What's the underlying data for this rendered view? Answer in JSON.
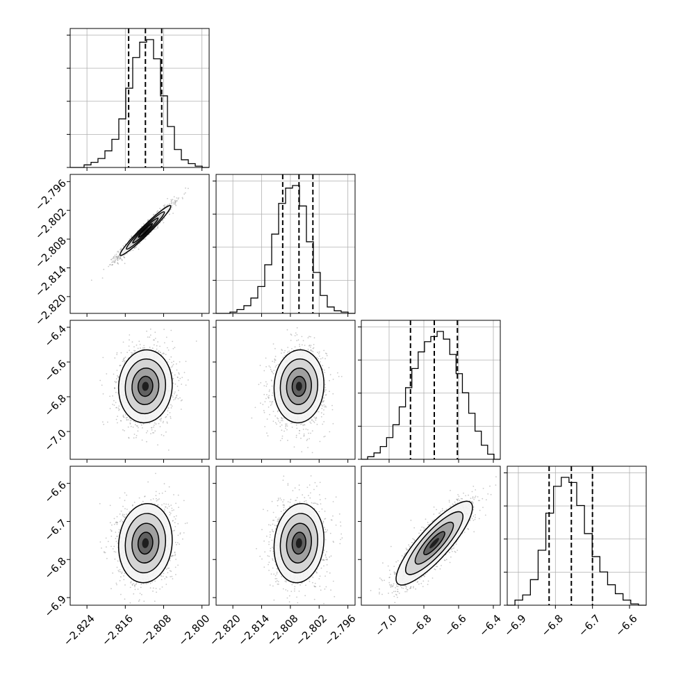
{
  "chart_data": {
    "type": "corner",
    "params": [
      {
        "range": [
          -2.8275,
          -2.7985
        ],
        "ticks": [
          "−2.824",
          "−2.816",
          "−2.808",
          "−2.800"
        ],
        "tick_values": [
          -2.824,
          -2.816,
          -2.808,
          -2.8
        ],
        "quantiles": [
          -2.8153,
          -2.8118,
          -2.8084
        ],
        "hist": [
          0.0,
          0.0,
          0.02,
          0.04,
          0.07,
          0.13,
          0.22,
          0.38,
          0.62,
          0.86,
          0.98,
          1.0,
          0.85,
          0.56,
          0.32,
          0.14,
          0.06,
          0.03,
          0.01,
          0.0
        ]
      },
      {
        "range": [
          -2.8235,
          -2.7945
        ],
        "ticks": [
          "−2.820",
          "−2.814",
          "−2.808",
          "−2.802",
          "−2.796"
        ],
        "tick_values": [
          -2.82,
          -2.814,
          -2.808,
          -2.802,
          -2.796
        ],
        "quantiles": [
          -2.8096,
          -2.8062,
          -2.8033
        ],
        "hist": [
          0.0,
          0.0,
          0.01,
          0.03,
          0.06,
          0.12,
          0.21,
          0.38,
          0.62,
          0.86,
          0.98,
          1.0,
          0.84,
          0.56,
          0.32,
          0.14,
          0.05,
          0.02,
          0.01,
          0.0
        ]
      },
      {
        "range": [
          -7.16,
          -6.36
        ],
        "ticks": [
          "−7.0",
          "−6.8",
          "−6.6",
          "−6.4"
        ],
        "tick_values": [
          -7.0,
          -6.8,
          -6.6,
          -6.4
        ],
        "quantiles": [
          -6.877,
          -6.74,
          -6.607
        ],
        "hist": [
          0.0,
          0.02,
          0.05,
          0.1,
          0.17,
          0.27,
          0.41,
          0.56,
          0.71,
          0.84,
          0.92,
          0.96,
          1.0,
          0.94,
          0.82,
          0.67,
          0.52,
          0.36,
          0.22,
          0.11,
          0.04,
          0.0
        ]
      },
      {
        "range": [
          -6.93,
          -6.555
        ],
        "ticks": [
          "−6.9",
          "−6.8",
          "−6.7",
          "−6.6"
        ],
        "tick_values": [
          -6.9,
          -6.8,
          -6.7,
          -6.6
        ],
        "ticks_y": [
          "−6.6",
          "−6.7",
          "−6.8",
          "−6.9"
        ],
        "tick_values_y": [
          -6.6,
          -6.7,
          -6.8,
          -6.9
        ],
        "range_y": [
          -6.92,
          -6.555
        ],
        "quantiles": [
          -6.817,
          -6.757,
          -6.7
        ],
        "hist": [
          0.0,
          0.04,
          0.08,
          0.2,
          0.43,
          0.72,
          0.93,
          1.0,
          0.96,
          0.78,
          0.56,
          0.38,
          0.26,
          0.16,
          0.09,
          0.04,
          0.01,
          0.0
        ]
      }
    ],
    "pairs": [
      {
        "row": 1,
        "col": 0,
        "center": [
          -2.8118,
          -2.8062
        ],
        "sx": 0.00265,
        "sy": 0.0026,
        "rho": 0.97
      },
      {
        "row": 2,
        "col": 0,
        "center": [
          -2.8118,
          -6.74
        ],
        "sx": 0.0028,
        "sy": 0.105,
        "rho": 0.05
      },
      {
        "row": 2,
        "col": 1,
        "center": [
          -2.8062,
          -6.74
        ],
        "sx": 0.0026,
        "sy": 0.105,
        "rho": 0.05
      },
      {
        "row": 3,
        "col": 0,
        "center": [
          -2.8118,
          -6.757
        ],
        "sx": 0.0028,
        "sy": 0.052,
        "rho": 0.08
      },
      {
        "row": 3,
        "col": 1,
        "center": [
          -2.8062,
          -6.757
        ],
        "sx": 0.0026,
        "sy": 0.052,
        "rho": 0.1
      },
      {
        "row": 3,
        "col": 2,
        "center": [
          -6.74,
          -6.757
        ],
        "sx": 0.11,
        "sy": 0.055,
        "rho": 0.85
      }
    ],
    "contour_levels": [
      0.5,
      1.0,
      1.5,
      2.0
    ],
    "grid": true,
    "colors": {
      "line": "#000000",
      "grid": "#b0b0b0",
      "scatter": "#9a9a9a",
      "background": "#ffffff"
    }
  }
}
